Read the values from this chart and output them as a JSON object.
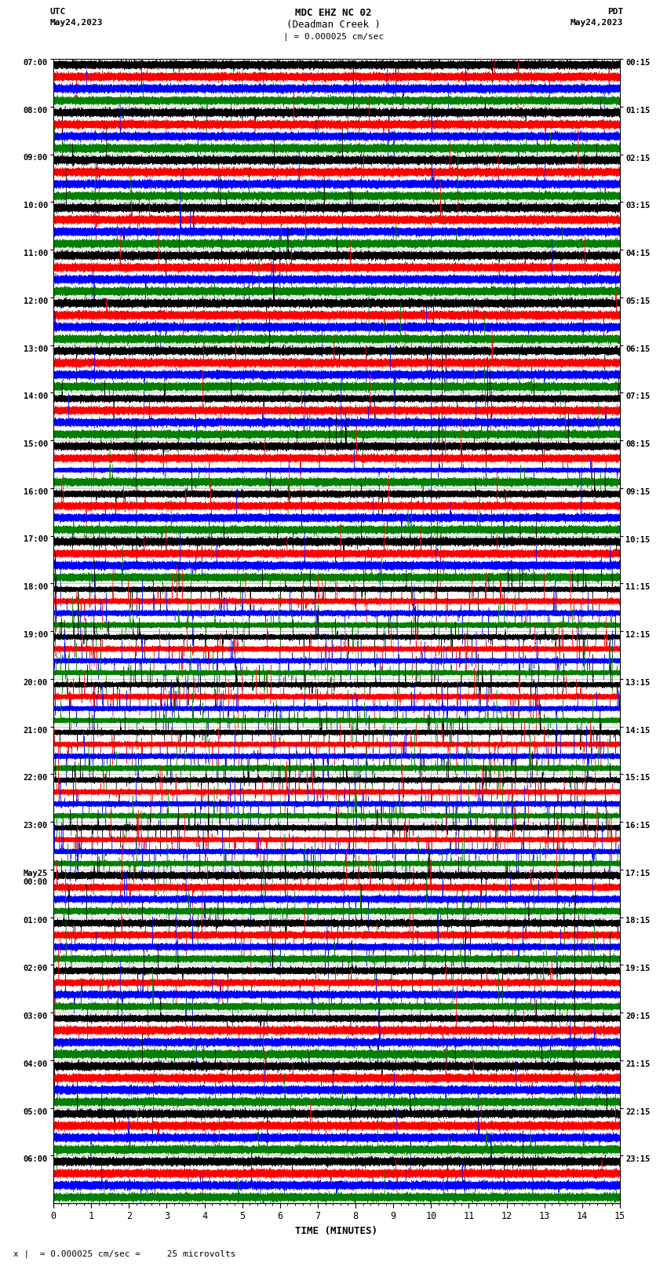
{
  "title_line1": "MDC EHZ NC 02",
  "title_line2": "(Deadman Creek )",
  "scale_text": "| = 0.000025 cm/sec",
  "left_label": "UTC",
  "left_date": "May24,2023",
  "right_label": "PDT",
  "right_date": "May24,2023",
  "xlabel": "TIME (MINUTES)",
  "bottom_note": "x |  = 0.000025 cm/sec =     25 microvolts",
  "utc_times": [
    "07:00",
    "08:00",
    "09:00",
    "10:00",
    "11:00",
    "12:00",
    "13:00",
    "14:00",
    "15:00",
    "16:00",
    "17:00",
    "18:00",
    "19:00",
    "20:00",
    "21:00",
    "22:00",
    "23:00",
    "May25\n00:00",
    "01:00",
    "02:00",
    "03:00",
    "04:00",
    "05:00",
    "06:00"
  ],
  "pdt_times": [
    "00:15",
    "01:15",
    "02:15",
    "03:15",
    "04:15",
    "05:15",
    "06:15",
    "07:15",
    "08:15",
    "09:15",
    "10:15",
    "11:15",
    "12:15",
    "13:15",
    "14:15",
    "15:15",
    "16:15",
    "17:15",
    "18:15",
    "19:15",
    "20:15",
    "21:15",
    "22:15",
    "23:15"
  ],
  "n_rows": 24,
  "traces_per_row": 4,
  "trace_colors": [
    "black",
    "red",
    "blue",
    "green"
  ],
  "n_minutes": 15,
  "background_color": "white",
  "grid_color": "#aaaaaa",
  "fig_width": 8.5,
  "fig_height": 16.13,
  "dpi": 100
}
